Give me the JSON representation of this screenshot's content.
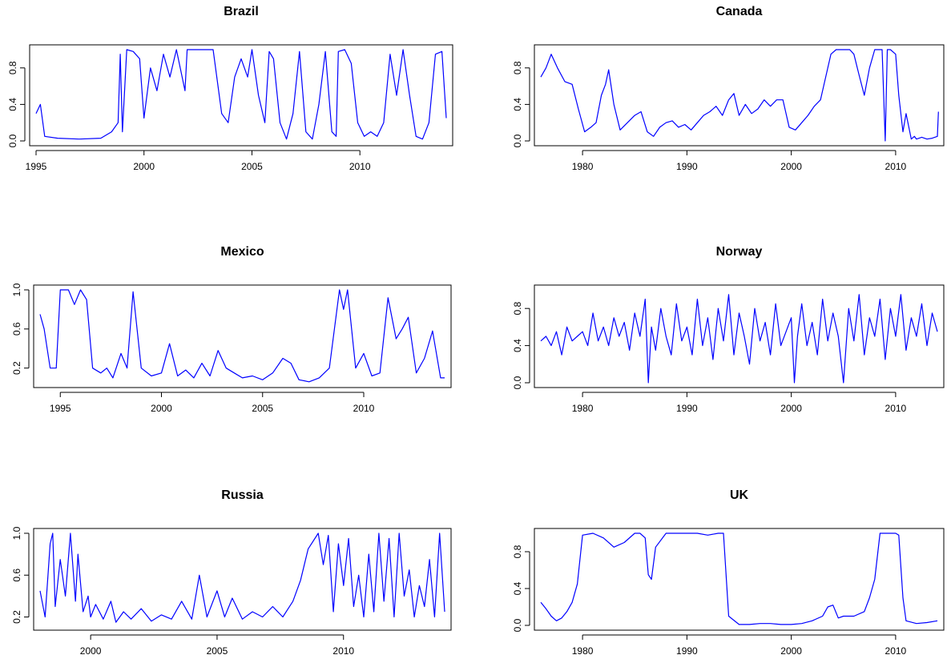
{
  "line_color": "#0000ff",
  "chart_data": [
    {
      "type": "line",
      "title": "Brazil",
      "xlabel": "",
      "ylabel": "",
      "xlim": [
        1995,
        2014
      ],
      "ylim": [
        0,
        1
      ],
      "grid": false,
      "x_ticks": [
        1995,
        2000,
        2005,
        2010
      ],
      "y_ticks": [
        0.0,
        0.4,
        0.8
      ],
      "y_tick_labels": [
        "0.0",
        "0.4",
        "0.8"
      ],
      "x": [
        1995.0,
        1995.2,
        1995.4,
        1996.0,
        1997.0,
        1998.0,
        1998.5,
        1998.8,
        1998.9,
        1999.0,
        1999.2,
        1999.5,
        1999.8,
        2000.0,
        2000.3,
        2000.6,
        2000.9,
        2001.2,
        2001.5,
        2001.9,
        2002.0,
        2002.4,
        2002.8,
        2003.2,
        2003.6,
        2003.9,
        2004.2,
        2004.5,
        2004.8,
        2005.0,
        2005.3,
        2005.6,
        2005.8,
        2006.0,
        2006.3,
        2006.6,
        2006.9,
        2007.2,
        2007.5,
        2007.8,
        2008.1,
        2008.4,
        2008.7,
        2008.9,
        2009.0,
        2009.3,
        2009.6,
        2009.9,
        2010.2,
        2010.5,
        2010.8,
        2011.1,
        2011.4,
        2011.7,
        2012.0,
        2012.3,
        2012.6,
        2012.9,
        2013.2,
        2013.5,
        2013.8,
        2014.0
      ],
      "values": [
        0.3,
        0.4,
        0.05,
        0.03,
        0.02,
        0.03,
        0.1,
        0.2,
        0.95,
        0.1,
        1.0,
        0.98,
        0.9,
        0.25,
        0.8,
        0.55,
        0.95,
        0.7,
        1.0,
        0.55,
        1.0,
        1.0,
        1.0,
        1.0,
        0.3,
        0.2,
        0.7,
        0.9,
        0.7,
        1.0,
        0.5,
        0.2,
        0.98,
        0.9,
        0.2,
        0.02,
        0.3,
        0.98,
        0.1,
        0.02,
        0.4,
        0.98,
        0.1,
        0.05,
        0.98,
        1.0,
        0.85,
        0.2,
        0.05,
        0.1,
        0.05,
        0.2,
        0.95,
        0.5,
        1.0,
        0.5,
        0.05,
        0.02,
        0.2,
        0.95,
        0.98,
        0.25
      ]
    },
    {
      "type": "line",
      "title": "Canada",
      "xlabel": "",
      "ylabel": "",
      "xlim": [
        1976,
        2014
      ],
      "ylim": [
        0,
        1
      ],
      "grid": false,
      "x_ticks": [
        1980,
        1990,
        2000,
        2010
      ],
      "y_ticks": [
        0.0,
        0.4,
        0.8
      ],
      "y_tick_labels": [
        "0.0",
        "0.4",
        "0.8"
      ],
      "x": [
        1976.0,
        1976.5,
        1977.0,
        1977.6,
        1978.3,
        1979.0,
        1979.6,
        1980.2,
        1980.8,
        1981.3,
        1981.8,
        1982.2,
        1982.5,
        1983.0,
        1983.6,
        1984.3,
        1985.0,
        1985.6,
        1986.2,
        1986.8,
        1987.4,
        1988.0,
        1988.6,
        1989.2,
        1989.8,
        1990.4,
        1991.0,
        1991.6,
        1992.2,
        1992.8,
        1993.4,
        1994.0,
        1994.5,
        1995.0,
        1995.6,
        1996.2,
        1996.8,
        1997.4,
        1998.0,
        1998.6,
        1999.2,
        1999.8,
        2000.4,
        2001.0,
        2001.6,
        2002.2,
        2002.8,
        2003.4,
        2003.8,
        2004.3,
        2005.0,
        2005.6,
        2006.0,
        2006.5,
        2007.0,
        2007.5,
        2008.0,
        2008.7,
        2009.0,
        2009.2,
        2009.5,
        2010.0,
        2010.3,
        2010.7,
        2011.0,
        2011.5,
        2011.8,
        2012.0,
        2012.5,
        2013.0,
        2013.5,
        2014.0,
        2014.1
      ],
      "values": [
        0.7,
        0.8,
        0.95,
        0.8,
        0.65,
        0.62,
        0.35,
        0.1,
        0.15,
        0.2,
        0.5,
        0.62,
        0.78,
        0.4,
        0.12,
        0.2,
        0.28,
        0.32,
        0.1,
        0.05,
        0.15,
        0.2,
        0.22,
        0.15,
        0.18,
        0.12,
        0.2,
        0.28,
        0.32,
        0.38,
        0.28,
        0.45,
        0.52,
        0.28,
        0.4,
        0.3,
        0.35,
        0.45,
        0.38,
        0.45,
        0.45,
        0.15,
        0.12,
        0.2,
        0.28,
        0.38,
        0.45,
        0.75,
        0.95,
        1.0,
        1.0,
        1.0,
        0.95,
        0.72,
        0.5,
        0.8,
        1.0,
        1.0,
        0.0,
        1.0,
        1.0,
        0.95,
        0.5,
        0.1,
        0.3,
        0.02,
        0.05,
        0.02,
        0.04,
        0.02,
        0.03,
        0.05,
        0.32
      ]
    },
    {
      "type": "line",
      "title": "Mexico",
      "xlabel": "",
      "ylabel": "",
      "xlim": [
        1994,
        2014
      ],
      "ylim": [
        0.05,
        1
      ],
      "grid": false,
      "x_ticks": [
        1995,
        2000,
        2005,
        2010
      ],
      "y_ticks": [
        0.2,
        0.6,
        1.0
      ],
      "y_tick_labels": [
        "0.2",
        "0.6",
        "1.0"
      ],
      "x": [
        1994.0,
        1994.2,
        1994.5,
        1994.8,
        1995.0,
        1995.4,
        1995.7,
        1996.0,
        1996.3,
        1996.6,
        1997.0,
        1997.3,
        1997.6,
        1998.0,
        1998.3,
        1998.6,
        1999.0,
        1999.5,
        2000.0,
        2000.4,
        2000.8,
        2001.2,
        2001.6,
        2002.0,
        2002.4,
        2002.8,
        2003.2,
        2003.6,
        2004.0,
        2004.5,
        2005.0,
        2005.5,
        2006.0,
        2006.4,
        2006.8,
        2007.3,
        2007.8,
        2008.3,
        2008.8,
        2009.0,
        2009.2,
        2009.6,
        2010.0,
        2010.4,
        2010.8,
        2011.2,
        2011.6,
        2011.9,
        2012.2,
        2012.6,
        2013.0,
        2013.4,
        2013.8,
        2014.0
      ],
      "values": [
        0.75,
        0.6,
        0.2,
        0.2,
        1.0,
        1.0,
        0.85,
        1.0,
        0.9,
        0.2,
        0.15,
        0.2,
        0.1,
        0.35,
        0.2,
        0.98,
        0.2,
        0.12,
        0.15,
        0.45,
        0.12,
        0.18,
        0.1,
        0.25,
        0.12,
        0.38,
        0.2,
        0.15,
        0.1,
        0.12,
        0.08,
        0.15,
        0.3,
        0.25,
        0.08,
        0.06,
        0.1,
        0.2,
        1.0,
        0.8,
        1.0,
        0.2,
        0.35,
        0.12,
        0.15,
        0.92,
        0.5,
        0.6,
        0.72,
        0.15,
        0.3,
        0.58,
        0.1,
        0.1
      ]
    },
    {
      "type": "line",
      "title": "Norway",
      "xlabel": "",
      "ylabel": "",
      "xlim": [
        1976,
        2014
      ],
      "ylim": [
        0,
        1
      ],
      "grid": false,
      "x_ticks": [
        1980,
        1990,
        2000,
        2010
      ],
      "y_ticks": [
        0.0,
        0.4,
        0.8
      ],
      "y_tick_labels": [
        "0.0",
        "0.4",
        "0.8"
      ],
      "x": [
        1976.0,
        1976.5,
        1977.0,
        1977.5,
        1978.0,
        1978.5,
        1979.0,
        1979.5,
        1980.0,
        1980.5,
        1981.0,
        1981.5,
        1982.0,
        1982.5,
        1983.0,
        1983.5,
        1984.0,
        1984.5,
        1985.0,
        1985.5,
        1986.0,
        1986.3,
        1986.6,
        1987.0,
        1987.5,
        1988.0,
        1988.5,
        1989.0,
        1989.5,
        1990.0,
        1990.5,
        1991.0,
        1991.5,
        1992.0,
        1992.5,
        1993.0,
        1993.5,
        1994.0,
        1994.5,
        1995.0,
        1995.5,
        1996.0,
        1996.5,
        1997.0,
        1997.5,
        1998.0,
        1998.5,
        1999.0,
        1999.5,
        2000.0,
        2000.3,
        2000.6,
        2001.0,
        2001.5,
        2002.0,
        2002.5,
        2003.0,
        2003.5,
        2004.0,
        2004.5,
        2005.0,
        2005.5,
        2006.0,
        2006.5,
        2007.0,
        2007.5,
        2008.0,
        2008.5,
        2009.0,
        2009.5,
        2010.0,
        2010.5,
        2011.0,
        2011.5,
        2012.0,
        2012.5,
        2013.0,
        2013.5,
        2014.0
      ],
      "values": [
        0.45,
        0.5,
        0.4,
        0.55,
        0.3,
        0.6,
        0.45,
        0.5,
        0.55,
        0.4,
        0.75,
        0.45,
        0.6,
        0.4,
        0.7,
        0.5,
        0.65,
        0.35,
        0.75,
        0.5,
        0.9,
        0.0,
        0.6,
        0.35,
        0.8,
        0.5,
        0.3,
        0.85,
        0.45,
        0.6,
        0.3,
        0.9,
        0.4,
        0.7,
        0.25,
        0.8,
        0.45,
        0.95,
        0.3,
        0.75,
        0.5,
        0.2,
        0.8,
        0.45,
        0.65,
        0.3,
        0.85,
        0.4,
        0.55,
        0.7,
        0.0,
        0.5,
        0.85,
        0.4,
        0.65,
        0.3,
        0.9,
        0.45,
        0.75,
        0.5,
        0.0,
        0.8,
        0.45,
        0.95,
        0.3,
        0.7,
        0.5,
        0.9,
        0.25,
        0.8,
        0.5,
        0.95,
        0.35,
        0.7,
        0.5,
        0.85,
        0.4,
        0.75,
        0.55
      ]
    },
    {
      "type": "line",
      "title": "Russia",
      "xlabel": "",
      "ylabel": "",
      "xlim": [
        1998,
        2014
      ],
      "ylim": [
        0.12,
        1
      ],
      "grid": false,
      "x_ticks": [
        2000,
        2005,
        2010
      ],
      "y_ticks": [
        0.2,
        0.6,
        1.0
      ],
      "y_tick_labels": [
        "0.2",
        "0.6",
        "1.0"
      ],
      "x": [
        1998.0,
        1998.2,
        1998.4,
        1998.5,
        1998.6,
        1998.8,
        1999.0,
        1999.2,
        1999.4,
        1999.5,
        1999.7,
        1999.9,
        2000.0,
        2000.2,
        2000.5,
        2000.8,
        2001.0,
        2001.3,
        2001.6,
        2002.0,
        2002.4,
        2002.8,
        2003.2,
        2003.6,
        2004.0,
        2004.3,
        2004.6,
        2005.0,
        2005.3,
        2005.6,
        2006.0,
        2006.4,
        2006.8,
        2007.2,
        2007.6,
        2008.0,
        2008.3,
        2008.6,
        2009.0,
        2009.2,
        2009.4,
        2009.6,
        2009.8,
        2010.0,
        2010.2,
        2010.4,
        2010.6,
        2010.8,
        2011.0,
        2011.2,
        2011.4,
        2011.6,
        2011.8,
        2012.0,
        2012.2,
        2012.4,
        2012.6,
        2012.8,
        2013.0,
        2013.2,
        2013.4,
        2013.6,
        2013.8,
        2014.0
      ],
      "values": [
        0.45,
        0.2,
        0.9,
        1.0,
        0.3,
        0.75,
        0.4,
        1.0,
        0.35,
        0.8,
        0.25,
        0.4,
        0.2,
        0.32,
        0.18,
        0.35,
        0.15,
        0.25,
        0.18,
        0.28,
        0.16,
        0.22,
        0.18,
        0.35,
        0.18,
        0.6,
        0.2,
        0.45,
        0.2,
        0.38,
        0.18,
        0.25,
        0.2,
        0.3,
        0.2,
        0.35,
        0.55,
        0.85,
        1.0,
        0.7,
        0.98,
        0.25,
        0.9,
        0.5,
        0.95,
        0.3,
        0.6,
        0.2,
        0.8,
        0.25,
        1.0,
        0.35,
        0.95,
        0.2,
        1.0,
        0.4,
        0.65,
        0.2,
        0.5,
        0.3,
        0.75,
        0.2,
        1.0,
        0.25
      ]
    },
    {
      "type": "line",
      "title": "UK",
      "xlabel": "",
      "ylabel": "",
      "xlim": [
        1976,
        2014
      ],
      "ylim": [
        0,
        1
      ],
      "grid": false,
      "x_ticks": [
        1980,
        1990,
        2000,
        2010
      ],
      "y_ticks": [
        0.0,
        0.4,
        0.8
      ],
      "y_tick_labels": [
        "0.0",
        "0.4",
        "0.8"
      ],
      "x": [
        1976.0,
        1976.5,
        1977.0,
        1977.5,
        1978.0,
        1978.5,
        1979.0,
        1979.5,
        1980.0,
        1981.0,
        1982.0,
        1983.0,
        1984.0,
        1985.0,
        1985.5,
        1986.0,
        1986.3,
        1986.6,
        1987.0,
        1988.0,
        1989.0,
        1990.0,
        1991.0,
        1992.0,
        1993.0,
        1993.5,
        1994.0,
        1995.0,
        1996.0,
        1997.0,
        1998.0,
        1999.0,
        2000.0,
        2001.0,
        2002.0,
        2003.0,
        2003.5,
        2004.0,
        2004.5,
        2005.0,
        2006.0,
        2007.0,
        2007.5,
        2008.0,
        2008.5,
        2009.0,
        2010.0,
        2010.3,
        2010.7,
        2011.0,
        2012.0,
        2013.0,
        2014.0
      ],
      "values": [
        0.25,
        0.18,
        0.1,
        0.05,
        0.08,
        0.15,
        0.25,
        0.45,
        0.98,
        1.0,
        0.95,
        0.85,
        0.9,
        1.0,
        1.0,
        0.95,
        0.55,
        0.5,
        0.85,
        1.0,
        1.0,
        1.0,
        1.0,
        0.98,
        1.0,
        1.0,
        0.1,
        0.01,
        0.01,
        0.02,
        0.02,
        0.01,
        0.01,
        0.02,
        0.05,
        0.1,
        0.2,
        0.22,
        0.08,
        0.1,
        0.1,
        0.15,
        0.3,
        0.5,
        1.0,
        1.0,
        1.0,
        0.98,
        0.3,
        0.05,
        0.02,
        0.03,
        0.05
      ]
    }
  ]
}
